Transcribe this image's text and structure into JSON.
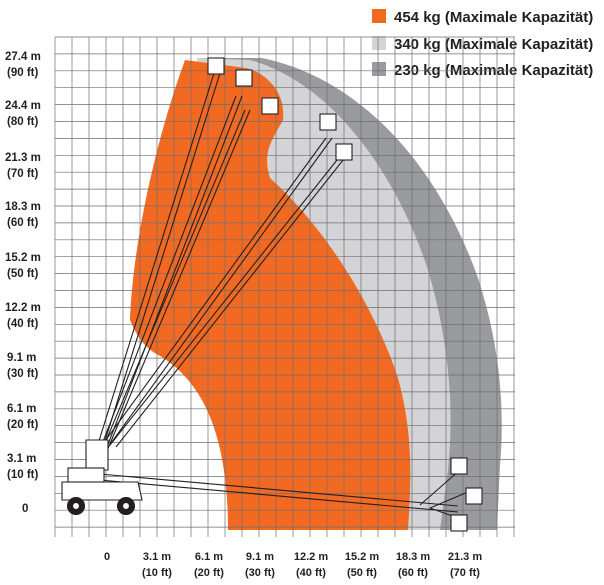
{
  "legend": [
    {
      "label": "454 kg (Maximale Kapazität)",
      "color": "#f26a21"
    },
    {
      "label": "340 kg (Maximale Kapazität)",
      "color": "#d4d4d6"
    },
    {
      "label": "230 kg (Maximale Kapazität)",
      "color": "#9a9b9f"
    }
  ],
  "y_ticks": [
    {
      "metric": "27.4 m",
      "imperial": "(90 ft)"
    },
    {
      "metric": "24.4 m",
      "imperial": "(80 ft)"
    },
    {
      "metric": "21.3 m",
      "imperial": "(70 ft)"
    },
    {
      "metric": "18.3 m",
      "imperial": "(60 ft)"
    },
    {
      "metric": "15.2 m",
      "imperial": "(50 ft)"
    },
    {
      "metric": "12.2 m",
      "imperial": "(40 ft)"
    },
    {
      "metric": "9.1 m",
      "imperial": "(30 ft)"
    },
    {
      "metric": "6.1 m",
      "imperial": "(20 ft)"
    },
    {
      "metric": "3.1 m",
      "imperial": "(10 ft)"
    },
    {
      "metric": "0",
      "imperial": ""
    }
  ],
  "x_ticks": [
    {
      "metric": "0",
      "imperial": ""
    },
    {
      "metric": "3.1 m",
      "imperial": "(10 ft)"
    },
    {
      "metric": "6.1 m",
      "imperial": "(20 ft)"
    },
    {
      "metric": "9.1 m",
      "imperial": "(30 ft)"
    },
    {
      "metric": "12.2 m",
      "imperial": "(40 ft)"
    },
    {
      "metric": "15.2 m",
      "imperial": "(50 ft)"
    },
    {
      "metric": "18.3 m",
      "imperial": "(60 ft)"
    },
    {
      "metric": "21.3 m",
      "imperial": "(70 ft)"
    }
  ],
  "colors": {
    "zone_454": "#f26a21",
    "zone_340": "#d4d4d6",
    "zone_230": "#9a9b9f",
    "grid": "#6d6e71",
    "boom_outline": "#231f20",
    "boom_fill": "#ffffff"
  }
}
